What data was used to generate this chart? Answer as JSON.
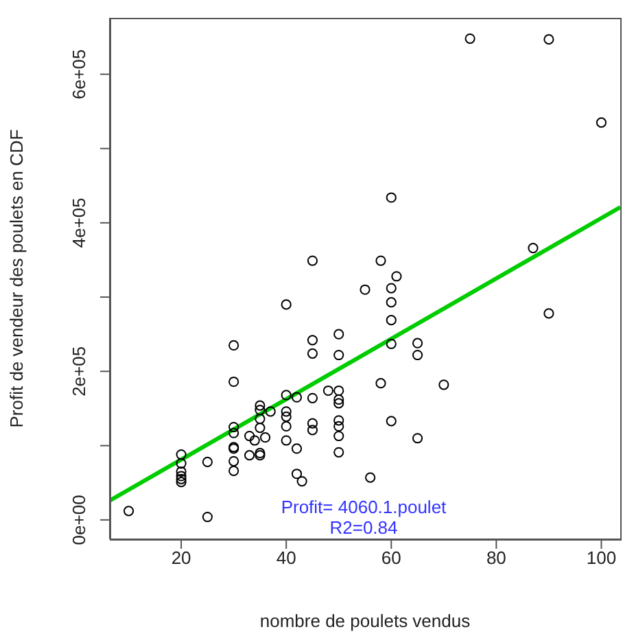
{
  "chart_data": {
    "type": "scatter",
    "xlabel": "nombre de poulets vendus",
    "ylabel": "Profit de vendeur des  poulets en CDF",
    "xlim": [
      6.4,
      103.6
    ],
    "xticks": [
      20,
      40,
      60,
      80,
      100
    ],
    "ylim": [
      -26000,
      676000
    ],
    "yticks": [
      {
        "value": 0,
        "label": "0e+00"
      },
      {
        "value": 100000,
        "label": null
      },
      {
        "value": 200000,
        "label": "2e+05"
      },
      {
        "value": 300000,
        "label": null
      },
      {
        "value": 400000,
        "label": "4e+05"
      },
      {
        "value": 500000,
        "label": null
      },
      {
        "value": 600000,
        "label": "6e+05"
      }
    ],
    "grid": false,
    "annotations": [
      "Profit= 4060.1.poulet",
      "R2=0.84"
    ],
    "series": [
      {
        "type": "scatter",
        "color": "#000000",
        "marker": "circle",
        "x": [
          10,
          25,
          20,
          20,
          20,
          20,
          20,
          20,
          25,
          30,
          30,
          30,
          30,
          30,
          30,
          30,
          30,
          33,
          34,
          33,
          35,
          35,
          35,
          35,
          35,
          35,
          36,
          37,
          40,
          40,
          40,
          40,
          40,
          40,
          42,
          42,
          42,
          43,
          45,
          45,
          45,
          45,
          45,
          45,
          48,
          50,
          50,
          50,
          50,
          50,
          50,
          50,
          50,
          50,
          58,
          61,
          55,
          60,
          60,
          60,
          60,
          65,
          65,
          58,
          70,
          60,
          65,
          56,
          90,
          75,
          90,
          100,
          60,
          87
        ],
        "values": [
          12000,
          4000,
          88000,
          76000,
          65000,
          59000,
          55000,
          51000,
          78000,
          235000,
          186000,
          125000,
          117000,
          98000,
          96000,
          79000,
          66000,
          113000,
          107000,
          87000,
          154000,
          148000,
          136000,
          124000,
          90000,
          87000,
          111000,
          146000,
          290000,
          168000,
          146000,
          139000,
          126000,
          107000,
          165000,
          96000,
          62000,
          52000,
          349000,
          242000,
          224000,
          164000,
          130000,
          121000,
          174000,
          250000,
          222000,
          174000,
          162000,
          157000,
          134000,
          126000,
          113000,
          91000,
          349000,
          328000,
          310000,
          312000,
          293000,
          269000,
          237000,
          238000,
          222000,
          184000,
          182000,
          133000,
          110000,
          57000,
          278000,
          648000,
          647000,
          535000,
          434000,
          366000
        ]
      },
      {
        "type": "line",
        "color": "#00cc00",
        "line_style": "solid",
        "marker": "none",
        "x": [
          6.4,
          103.6
        ],
        "values": [
          26000,
          421000
        ]
      }
    ]
  }
}
